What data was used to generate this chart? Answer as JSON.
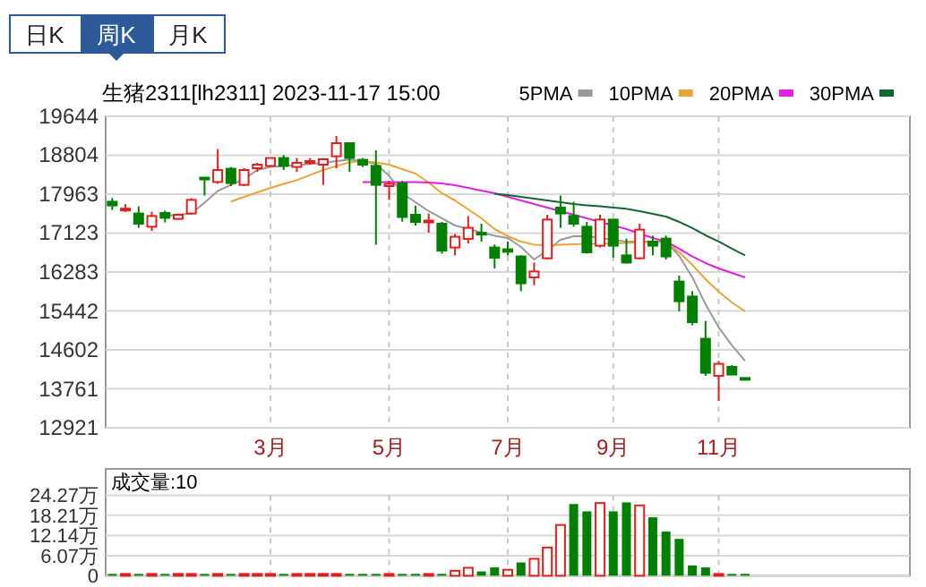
{
  "chart_data": [
    {
      "type": "candlestick",
      "title": "生猪2311[lh2311] 2023-11-17 15:00",
      "annotations": [
        "日K",
        "周K",
        "月K"
      ],
      "categories": [
        null,
        null,
        null,
        null,
        null,
        null,
        null,
        null,
        null,
        null,
        null,
        null,
        "3月",
        null,
        null,
        null,
        null,
        null,
        null,
        null,
        null,
        "5月",
        null,
        null,
        null,
        null,
        null,
        null,
        null,
        null,
        "7月",
        null,
        null,
        null,
        null,
        null,
        null,
        null,
        "9月",
        null,
        null,
        null,
        null,
        null,
        null,
        null,
        "11月",
        null,
        null,
        null,
        null,
        null,
        null,
        null,
        null,
        null,
        null,
        null,
        null,
        null,
        null
      ],
      "ohlc": [
        [
          17800,
          17880,
          17620,
          17720
        ],
        [
          17630,
          17750,
          17580,
          17650
        ],
        [
          17546,
          17700,
          17237,
          17326
        ],
        [
          17260,
          17584,
          17171,
          17492
        ],
        [
          17557,
          17608,
          17353,
          17453
        ],
        [
          17430,
          17546,
          17415,
          17519
        ],
        [
          17546,
          17878,
          17519,
          17840
        ],
        [
          18320,
          18330,
          17932,
          18300
        ],
        [
          18226,
          18937,
          18187,
          18485
        ],
        [
          18512,
          18550,
          18137,
          18203
        ],
        [
          18164,
          18523,
          18137,
          18485
        ],
        [
          18523,
          18640,
          18446,
          18601
        ],
        [
          18574,
          18744,
          18550,
          18744
        ],
        [
          18744,
          18806,
          18485,
          18574
        ],
        [
          18551,
          18744,
          18446,
          18640
        ],
        [
          18660,
          18744,
          18601,
          18678
        ],
        [
          18601,
          18744,
          18164,
          18717
        ],
        [
          18782,
          19219,
          18523,
          19064
        ],
        [
          19064,
          19064,
          18446,
          18744
        ],
        [
          18705,
          18744,
          18550,
          18601
        ],
        [
          18574,
          18910,
          16873,
          18164
        ],
        [
          18137,
          18253,
          17840,
          18186
        ],
        [
          18195,
          18250,
          17370,
          17471
        ],
        [
          17519,
          17712,
          17287,
          17364
        ],
        [
          17370,
          17546,
          17132,
          17393
        ],
        [
          17326,
          17364,
          16680,
          16746
        ],
        [
          16812,
          17106,
          16642,
          17044
        ],
        [
          16997,
          17492,
          16900,
          17237
        ],
        [
          17130,
          17326,
          16940,
          17106
        ],
        [
          16812,
          16874,
          16360,
          16591
        ],
        [
          16773,
          16940,
          16642,
          16719
        ],
        [
          16619,
          16642,
          15869,
          16039
        ],
        [
          16166,
          16487,
          15999,
          16294
        ],
        [
          16580,
          17519,
          16553,
          17415
        ],
        [
          17673,
          17932,
          17237,
          17546
        ],
        [
          17492,
          17801,
          17260,
          17326
        ],
        [
          17260,
          17364,
          16680,
          16708
        ],
        [
          16850,
          17519,
          16812,
          17415
        ],
        [
          17415,
          17415,
          16591,
          16850
        ],
        [
          16642,
          17004,
          16464,
          16487
        ],
        [
          16580,
          17326,
          16553,
          17198
        ],
        [
          16940,
          17067,
          16642,
          16850
        ],
        [
          17004,
          17067,
          16553,
          16619
        ],
        [
          16077,
          16205,
          15432,
          15652
        ],
        [
          15753,
          15869,
          15135,
          15200
        ],
        [
          14841,
          15227,
          14041,
          14107
        ],
        [
          14041,
          14362,
          13500,
          14300
        ],
        [
          14235,
          14273,
          14068,
          14068
        ],
        [
          13995,
          13995,
          13990,
          13990
        ],
        null,
        null,
        null,
        null,
        null,
        null,
        null,
        null,
        null,
        null,
        null,
        null
      ],
      "series": [
        {
          "name": "5PMA",
          "type": "line",
          "color": "#999999",
          "values": [
            null,
            null,
            null,
            null,
            17492,
            17519,
            17546,
            17778,
            18033,
            18164,
            18292,
            18485,
            18551,
            18574,
            18590,
            18613,
            18640,
            18678,
            18705,
            18678,
            18613,
            18358,
            17983,
            17790,
            17597,
            17442,
            17287,
            17210,
            17133,
            17067,
            17017,
            16824,
            16554,
            16747,
            16979,
            17056,
            17056,
            17017,
            16979,
            16940,
            16940,
            16940,
            16940,
            16631,
            16168,
            15588,
            15086,
            14700,
            14363,
            null,
            null,
            null,
            null,
            null,
            null,
            null,
            null,
            null,
            null,
            null,
            null
          ]
        },
        {
          "name": "10PMA",
          "type": "line",
          "color": "#e8a33a",
          "values": [
            null,
            null,
            null,
            null,
            null,
            null,
            null,
            null,
            null,
            17805,
            17906,
            18002,
            18099,
            18184,
            18265,
            18377,
            18485,
            18570,
            18651,
            18678,
            18651,
            18601,
            18504,
            18408,
            18215,
            17983,
            17828,
            17635,
            17442,
            17210,
            17056,
            16940,
            16874,
            16863,
            16874,
            16882,
            16889,
            16893,
            16901,
            16909,
            16920,
            16928,
            16940,
            16708,
            16437,
            16128,
            15857,
            15626,
            15433,
            null,
            null,
            null,
            null,
            null,
            null,
            null,
            null,
            null,
            null,
            null,
            null
          ]
        },
        {
          "name": "20PMA",
          "type": "line",
          "color": "#e020e0",
          "values": [
            null,
            null,
            null,
            null,
            null,
            null,
            null,
            null,
            null,
            null,
            null,
            null,
            null,
            null,
            null,
            null,
            null,
            null,
            null,
            18226,
            18226,
            18226,
            18226,
            18226,
            18215,
            18195,
            18157,
            18099,
            18041,
            17983,
            17906,
            17828,
            17751,
            17674,
            17597,
            17519,
            17442,
            17365,
            17287,
            17210,
            17113,
            17017,
            16940,
            16785,
            16619,
            16476,
            16360,
            16264,
            16167,
            null,
            null,
            null,
            null,
            null,
            null,
            null,
            null,
            null,
            null,
            null,
            null
          ]
        },
        {
          "name": "30PMA",
          "type": "line",
          "color": "#116633",
          "values": [
            null,
            null,
            null,
            null,
            null,
            null,
            null,
            null,
            null,
            null,
            null,
            null,
            null,
            null,
            null,
            null,
            null,
            null,
            null,
            null,
            null,
            null,
            null,
            null,
            null,
            null,
            null,
            null,
            null,
            17971,
            17944,
            17906,
            17867,
            17828,
            17790,
            17751,
            17724,
            17701,
            17674,
            17647,
            17597,
            17539,
            17481,
            17365,
            17230,
            17075,
            16940,
            16785,
            16642,
            null,
            null,
            null,
            null,
            null,
            null,
            null,
            null,
            null,
            null,
            null,
            null
          ]
        }
      ],
      "ylim": [
        12921,
        19644
      ],
      "yticks": [
        12921,
        13761,
        14602,
        15442,
        16283,
        17123,
        17963,
        18804,
        19644
      ],
      "grid": true,
      "legend": "top right"
    },
    {
      "type": "bar",
      "title": "成交量:10",
      "categories": [
        null,
        null,
        null,
        null,
        null,
        null,
        null,
        null,
        null,
        null,
        null,
        null,
        null,
        null,
        null,
        null,
        null,
        null,
        null,
        null,
        null,
        null,
        null,
        null,
        null,
        null,
        null,
        null,
        null,
        null,
        null,
        null,
        null,
        null,
        null,
        null,
        null,
        null,
        null,
        null,
        null,
        null,
        null,
        null,
        null,
        null,
        null,
        null,
        null,
        null,
        null,
        null,
        null,
        null,
        null,
        null,
        null,
        null,
        null,
        null,
        null
      ],
      "values": [
        0.2,
        0.2,
        0.2,
        0.2,
        0.2,
        0.2,
        0.2,
        0.2,
        0.2,
        0.2,
        0.2,
        0.2,
        0.2,
        0.2,
        0.2,
        0.2,
        0.2,
        0.2,
        0.2,
        0.2,
        0.5,
        0.3,
        0.5,
        0.5,
        0.5,
        0.5,
        1.5,
        2.4,
        1.3,
        2.5,
        1.8,
        4.0,
        5.1,
        8.5,
        15.3,
        21.6,
        19.4,
        21.9,
        19.4,
        22.1,
        21.2,
        17.6,
        13.3,
        11.1,
        3.1,
        2.5,
        0.3,
        0.3,
        0,
        null,
        null,
        null,
        null,
        null,
        null,
        null,
        null,
        null,
        null,
        null,
        null
      ],
      "colors": [
        "#008000",
        "#e02020",
        "#008000",
        "#e02020",
        "#008000",
        "#e02020",
        "#e02020",
        "#008000",
        "#e02020",
        "#008000",
        "#e02020",
        "#e02020",
        "#e02020",
        "#008000",
        "#e02020",
        "#e02020",
        "#e02020",
        "#e02020",
        "#008000",
        "#008000",
        "#008000",
        "#e02020",
        "#008000",
        "#008000",
        "#e02020",
        "#008000",
        "#e02020",
        "#e02020",
        "#008000",
        "#008000",
        "#e02020",
        "#008000",
        "#e02020",
        "#e02020",
        "#e02020",
        "#008000",
        "#008000",
        "#e02020",
        "#008000",
        "#008000",
        "#e02020",
        "#008000",
        "#008000",
        "#008000",
        "#008000",
        "#008000",
        "#e02020",
        "#008000",
        "#008000",
        null,
        null,
        null,
        null,
        null,
        null,
        null,
        null,
        null,
        null,
        null,
        null
      ],
      "ylim": [
        0,
        24.27
      ],
      "yticks": [
        0,
        {
          "value": 6.07,
          "label": "6.07万"
        },
        {
          "value": 12.14,
          "label": "12.14万"
        },
        {
          "value": 18.21,
          "label": "18.21万"
        },
        {
          "value": 24.27,
          "label": "24.27万"
        }
      ],
      "grid": true,
      "tick_labels": "y"
    }
  ]
}
